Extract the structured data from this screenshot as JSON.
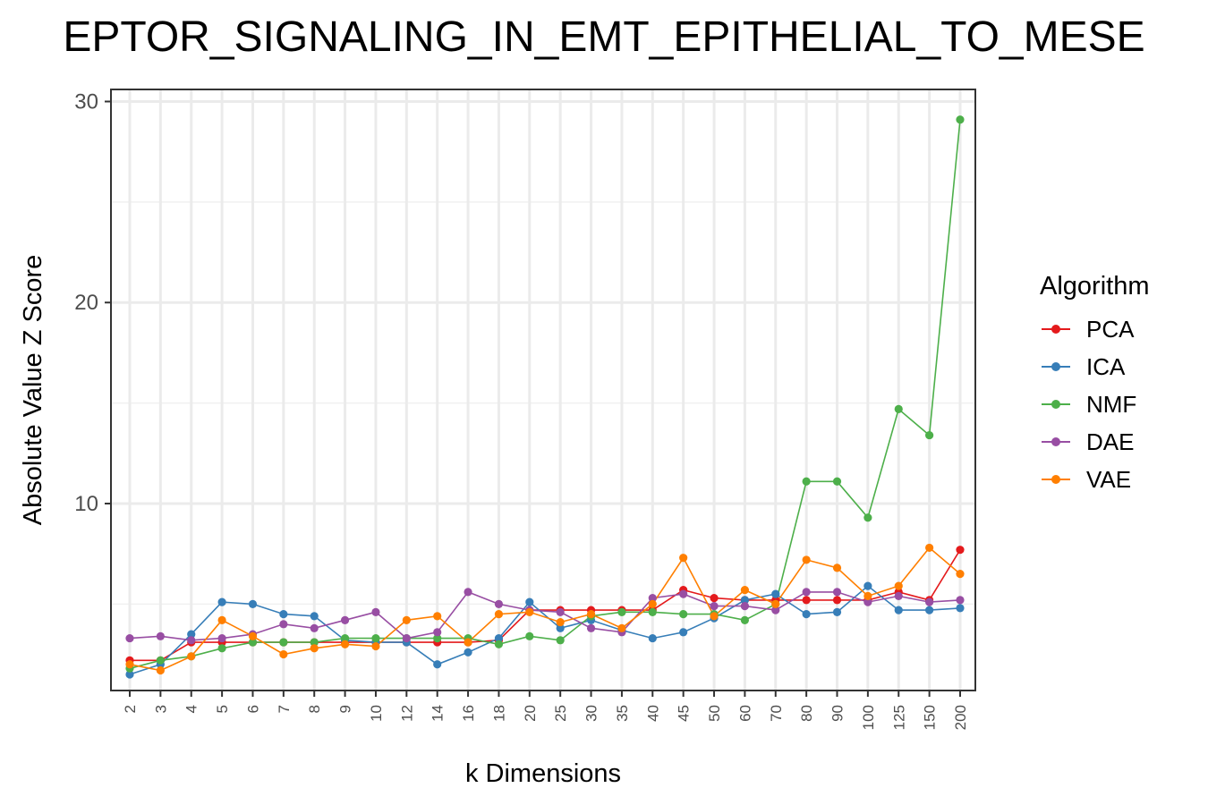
{
  "chart_data": {
    "type": "line",
    "title": "EPTOR_SIGNALING_IN_EMT_EPITHELIAL_TO_MESE",
    "xlabel": "k Dimensions",
    "ylabel": "Absolute Value Z Score",
    "ylim": [
      0.7,
      30.6
    ],
    "yticks": [
      10,
      20,
      30
    ],
    "grid": true,
    "legend_title": "Algorithm",
    "legend_position": "right",
    "categories": [
      "2",
      "3",
      "4",
      "5",
      "6",
      "7",
      "8",
      "9",
      "10",
      "12",
      "14",
      "16",
      "18",
      "20",
      "25",
      "30",
      "35",
      "40",
      "45",
      "50",
      "60",
      "70",
      "80",
      "90",
      "100",
      "125",
      "150",
      "200"
    ],
    "series": [
      {
        "name": "PCA",
        "color": "#e41a1c",
        "values": [
          2.2,
          2.2,
          3.1,
          3.1,
          3.1,
          3.1,
          3.1,
          3.1,
          3.1,
          3.1,
          3.1,
          3.1,
          3.2,
          4.7,
          4.7,
          4.7,
          4.7,
          4.7,
          5.7,
          5.3,
          5.2,
          5.2,
          5.2,
          5.2,
          5.2,
          5.6,
          5.2,
          7.7
        ]
      },
      {
        "name": "ICA",
        "color": "#377eb8",
        "values": [
          1.5,
          2.0,
          3.5,
          5.1,
          5.0,
          4.5,
          4.4,
          3.2,
          3.1,
          3.1,
          2.0,
          2.6,
          3.3,
          5.1,
          3.8,
          4.2,
          3.7,
          3.3,
          3.6,
          4.3,
          5.2,
          5.5,
          4.5,
          4.6,
          5.9,
          4.7,
          4.7,
          4.8
        ]
      },
      {
        "name": "NMF",
        "color": "#4daf4a",
        "values": [
          1.8,
          2.2,
          2.4,
          2.8,
          3.1,
          3.1,
          3.1,
          3.3,
          3.3,
          3.3,
          3.3,
          3.3,
          3.0,
          3.4,
          3.2,
          4.4,
          4.6,
          4.6,
          4.5,
          4.5,
          4.2,
          5.0,
          11.1,
          11.1,
          9.3,
          14.7,
          13.4,
          29.1
        ]
      },
      {
        "name": "DAE",
        "color": "#984ea3",
        "values": [
          3.3,
          3.4,
          3.2,
          3.3,
          3.5,
          4.0,
          3.8,
          4.2,
          4.6,
          3.3,
          3.6,
          5.6,
          5.0,
          4.7,
          4.6,
          3.8,
          3.6,
          5.3,
          5.5,
          4.9,
          4.9,
          4.7,
          5.6,
          5.6,
          5.1,
          5.4,
          5.1,
          5.2
        ]
      },
      {
        "name": "VAE",
        "color": "#ff7f00",
        "values": [
          2.0,
          1.7,
          2.4,
          4.2,
          3.4,
          2.5,
          2.8,
          3.0,
          2.9,
          4.2,
          4.4,
          3.1,
          4.5,
          4.6,
          4.1,
          4.5,
          3.8,
          5.0,
          7.3,
          4.4,
          5.7,
          5.0,
          7.2,
          6.8,
          5.4,
          5.9,
          7.8,
          6.5
        ]
      }
    ]
  }
}
